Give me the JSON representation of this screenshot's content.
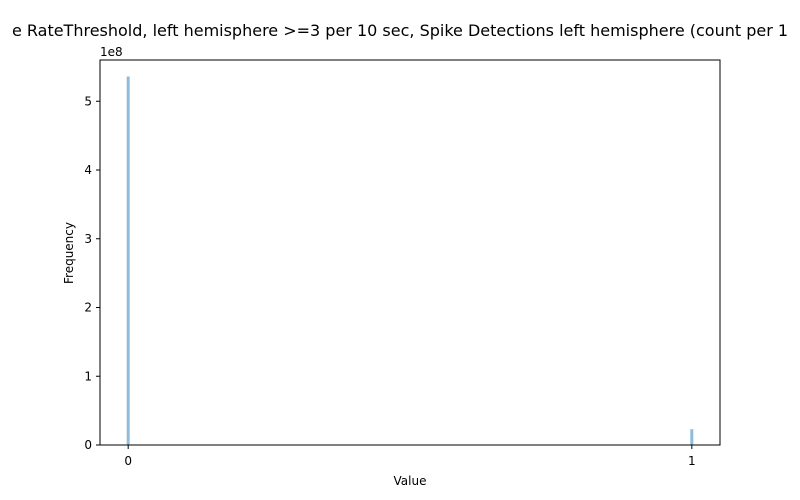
{
  "chart_data": {
    "type": "bar",
    "title": "e RateThreshold, left hemisphere >=3 per 10 sec, Spike Detections left hemisphere (count per 1",
    "xlabel": "Value",
    "ylabel": "Frequency",
    "x_ticks": [
      "0",
      "1"
    ],
    "y_ticks": [
      "0",
      "1",
      "2",
      "3",
      "4",
      "5"
    ],
    "y_offset_label": "1e8",
    "xlim": [
      -0.05,
      1.05
    ],
    "ylim": [
      0,
      560000000
    ],
    "bar_color": "#8fbcd9",
    "grid": false,
    "legend": "none",
    "bars": [
      {
        "x": 0,
        "value": 536000000
      },
      {
        "x": 1,
        "value": 23000000
      }
    ]
  }
}
